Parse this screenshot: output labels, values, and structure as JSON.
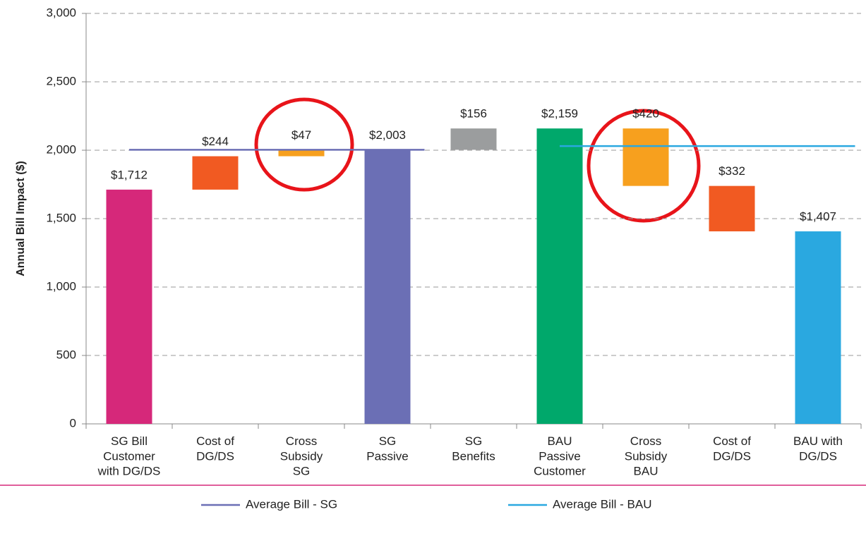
{
  "chart_data": {
    "type": "waterfall",
    "ylabel": "Annual Bill Impact ($)",
    "categories": [
      "SG Bill\nCustomer\nwith DG/DS",
      "Cost of\nDG/DS",
      "Cross\nSubsidy\nSG",
      "SG\nPassive",
      "SG\nBenefits",
      "BAU\nPassive\nCustomer",
      "Cross\nSubsidy\nBAU",
      "Cost of\nDG/DS",
      "BAU with\nDG/DS"
    ],
    "values": [
      1712,
      244,
      47,
      2003,
      156,
      2159,
      420,
      332,
      1407
    ],
    "value_labels": [
      "$1,712",
      "$244",
      "$47",
      "$2,003",
      "$156",
      "$2,159",
      "$420",
      "$332",
      "$1,407"
    ],
    "kinds": [
      "total",
      "increase",
      "increase",
      "total",
      "increase",
      "total",
      "decrease",
      "decrease",
      "total"
    ],
    "colors": [
      "#d6287a",
      "#f15a22",
      "#f7a01e",
      "#6b6fb5",
      "#9b9d9e",
      "#00a86b",
      "#f7a01e",
      "#f15a22",
      "#2aa8e0"
    ],
    "lines": [
      {
        "name": "Average Bill - SG",
        "color": "#6b6fb5",
        "value": 2003,
        "from": 0,
        "to": 3
      },
      {
        "name": "Average Bill - BAU",
        "color": "#2aa8e0",
        "value": 2030,
        "from": 5,
        "to": 8
      }
    ],
    "ylim": [
      0,
      3000
    ],
    "yticks": [
      0,
      500,
      {
        "value": 1000,
        "label": "1,000"
      },
      {
        "value": 1500,
        "label": "1,500"
      },
      {
        "value": 2000,
        "label": "2,000"
      },
      {
        "value": 2500,
        "label": "2,500"
      },
      {
        "value": 3000,
        "label": "3,000"
      }
    ],
    "grid": true
  }
}
